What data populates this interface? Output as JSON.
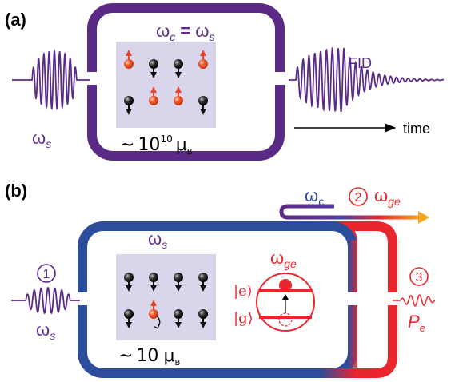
{
  "panel_a": {
    "label": "(a)",
    "resonance": {
      "omega": "ω",
      "c": "c",
      "eq": " = ",
      "s": "s"
    },
    "drive_freq": {
      "omega": "ω",
      "s": "s"
    },
    "moment": {
      "tilde": "~",
      "base": "10",
      "exp": "10",
      "mu": "μ",
      "B": "B"
    },
    "fid_label": "FID",
    "time_label": "time",
    "spins": [
      [
        "up",
        "down",
        "down",
        "up"
      ],
      [
        "down",
        "up",
        "up",
        "down"
      ]
    ]
  },
  "panel_b": {
    "label": "(b)",
    "cavity_freq": {
      "omega": "ω",
      "s": "s"
    },
    "transmon_freq": {
      "omega": "ω",
      "sub": "ge"
    },
    "drive_freq": {
      "omega": "ω",
      "s": "s"
    },
    "moment": {
      "tilde": "~",
      "base": "10",
      "mu": "μ",
      "B": "B"
    },
    "ket_e": "|e⟩",
    "ket_g": "|g⟩",
    "step1": "1",
    "step2": "2",
    "step3": "3",
    "tunable_from": "ω",
    "tunable_from_sub": "c",
    "tunable_to": {
      "omega": "ω",
      "sub": "ge"
    },
    "readout": {
      "P": "P",
      "sub": "e"
    },
    "spins": [
      [
        "down",
        "down",
        "down",
        "down"
      ],
      [
        "down",
        "up",
        "down",
        "down"
      ]
    ]
  },
  "colors": {
    "purple": "#5b2a86",
    "blue": "#2c4c9c",
    "red": "#e8262e",
    "orange": "#f0502a",
    "spinbox": "#d9d5ea"
  }
}
